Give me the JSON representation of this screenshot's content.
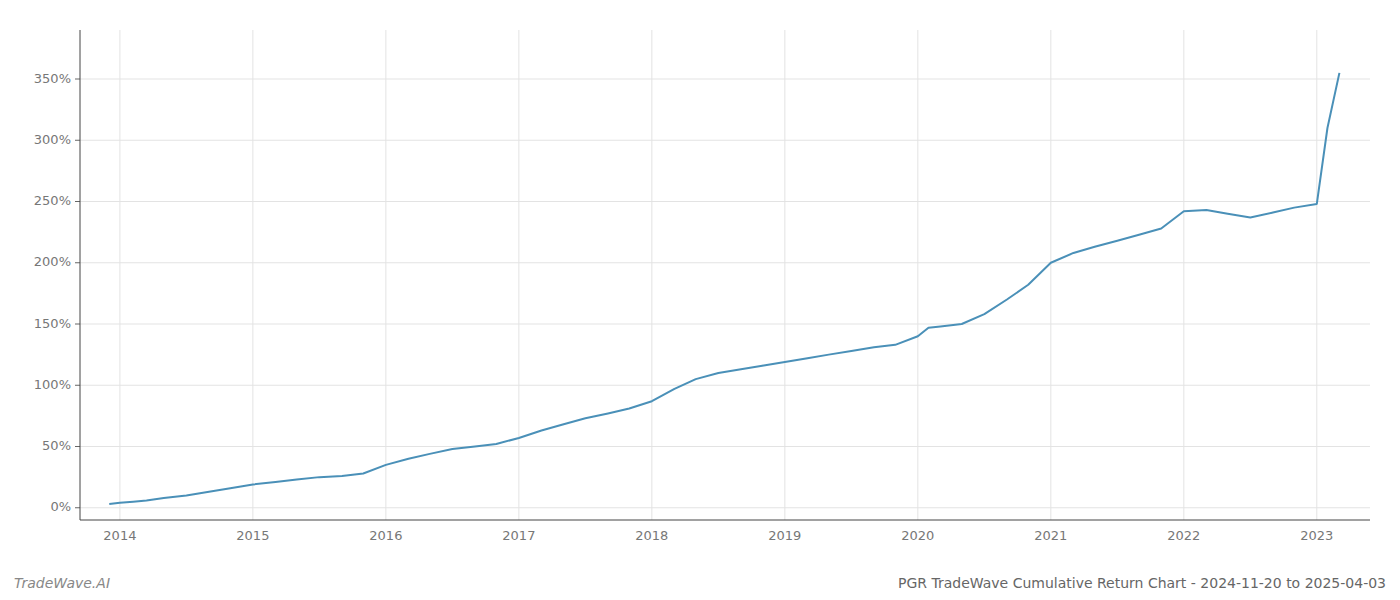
{
  "chart_data": {
    "type": "line",
    "title": "PGR TradeWave Cumulative Return Chart - 2024-11-20 to 2025-04-03",
    "annotations": [
      "TradeWave.AI"
    ],
    "color": "#4a90b8",
    "grid": true,
    "x": [
      2013.92,
      2014.0,
      2014.1,
      2014.2,
      2014.33,
      2014.5,
      2014.67,
      2014.83,
      2015.0,
      2015.17,
      2015.33,
      2015.5,
      2015.67,
      2015.83,
      2016.0,
      2016.17,
      2016.33,
      2016.5,
      2016.67,
      2016.83,
      2017.0,
      2017.17,
      2017.33,
      2017.5,
      2017.67,
      2017.83,
      2018.0,
      2018.17,
      2018.33,
      2018.5,
      2018.67,
      2018.83,
      2019.0,
      2019.17,
      2019.33,
      2019.5,
      2019.67,
      2019.83,
      2020.0,
      2020.08,
      2020.17,
      2020.33,
      2020.5,
      2020.67,
      2020.83,
      2021.0,
      2021.17,
      2021.33,
      2021.5,
      2021.67,
      2021.83,
      2022.0,
      2022.17,
      2022.33,
      2022.5,
      2022.67,
      2022.83,
      2023.0,
      2023.08,
      2023.17
    ],
    "values": [
      3,
      4,
      5,
      6,
      8,
      10,
      13,
      16,
      19,
      21,
      23,
      25,
      26,
      28,
      35,
      40,
      44,
      48,
      50,
      52,
      57,
      63,
      68,
      73,
      77,
      81,
      87,
      97,
      105,
      110,
      113,
      116,
      119,
      122,
      125,
      128,
      131,
      133,
      140,
      147,
      148,
      150,
      158,
      170,
      182,
      200,
      208,
      213,
      218,
      223,
      228,
      242,
      243,
      240,
      237,
      241,
      245,
      248,
      310,
      355
    ],
    "xlim": [
      2013.7,
      2023.4
    ],
    "xticks": [
      2014,
      2015,
      2016,
      2017,
      2018,
      2019,
      2020,
      2021,
      2022,
      2023
    ],
    "ylim": [
      -10,
      390
    ],
    "yticks": [
      {
        "value": 0,
        "label": "0%"
      },
      {
        "value": 50,
        "label": "50%"
      },
      {
        "value": 100,
        "label": "100%"
      },
      {
        "value": 150,
        "label": "150%"
      },
      {
        "value": 200,
        "label": "200%"
      },
      {
        "value": 250,
        "label": "250%"
      },
      {
        "value": 300,
        "label": "300%"
      },
      {
        "value": 350,
        "label": "350%"
      }
    ]
  }
}
